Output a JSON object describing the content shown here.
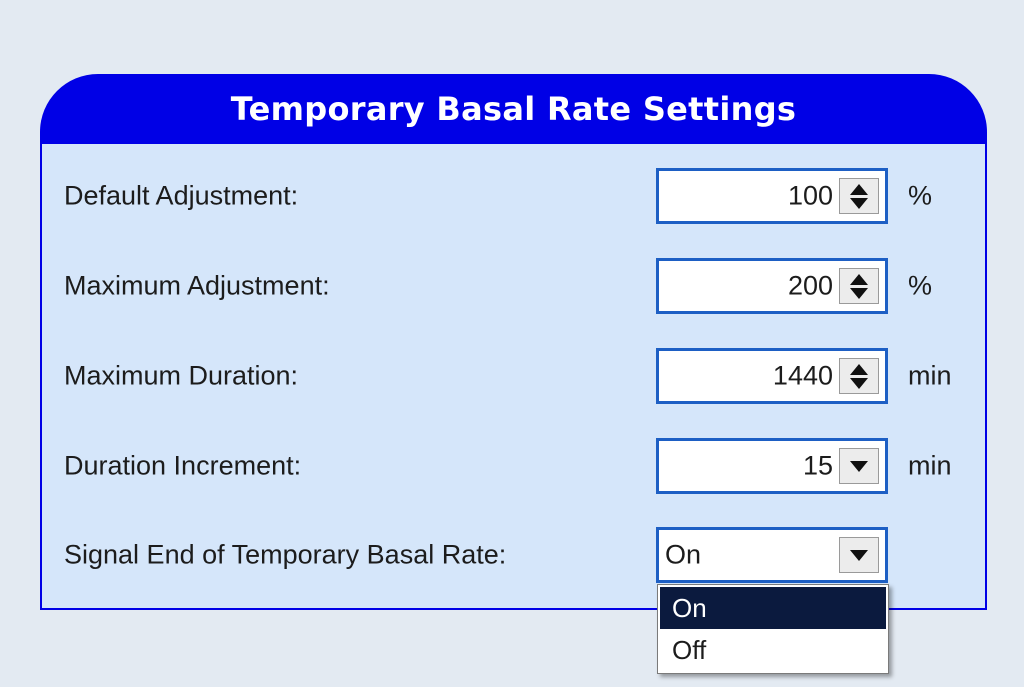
{
  "panel": {
    "title": "Temporary Basal Rate Settings"
  },
  "settings": [
    {
      "label": "Default Adjustment:",
      "value": "100",
      "unit": "%",
      "control": "spinner"
    },
    {
      "label": "Maximum Adjustment:",
      "value": "200",
      "unit": "%",
      "control": "spinner"
    },
    {
      "label": "Maximum Duration:",
      "value": "1440",
      "unit": "min",
      "control": "spinner"
    },
    {
      "label": "Duration Increment:",
      "value": "15",
      "unit": "min",
      "control": "dropdown"
    },
    {
      "label": "Signal End of Temporary Basal Rate:",
      "value": "On",
      "unit": "",
      "control": "select"
    }
  ],
  "dropdown": {
    "options": [
      "On",
      "Off"
    ],
    "highlighted": "On"
  },
  "colors": {
    "header": "#0000e6",
    "panel_bg": "#d5e6fa",
    "field_border": "#1d5fc4",
    "highlight": "#0b1a3e"
  }
}
